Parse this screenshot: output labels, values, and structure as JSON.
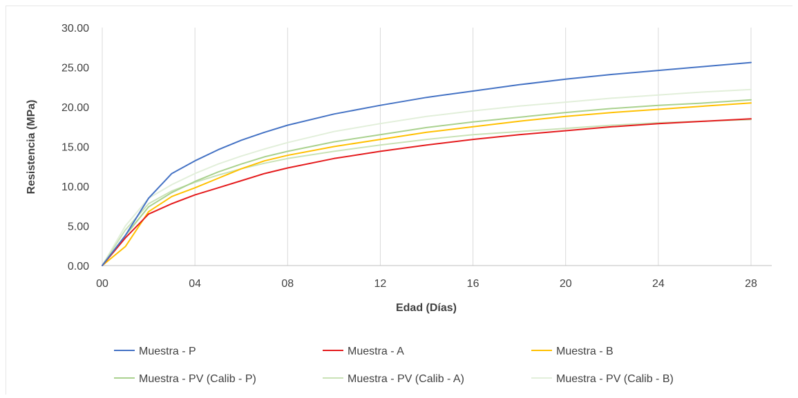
{
  "chart_data": {
    "type": "line",
    "xlabel": "Edad (Días)",
    "ylabel": "Resistencia (MPa)",
    "xlim": [
      0,
      28
    ],
    "ylim": [
      0,
      30
    ],
    "x_ticks": [
      "00",
      "04",
      "08",
      "12",
      "16",
      "20",
      "24",
      "28"
    ],
    "y_ticks": [
      "0.00",
      "5.00",
      "10.00",
      "15.00",
      "20.00",
      "25.00",
      "30.00"
    ],
    "grid": "vertical",
    "legend_position": "bottom",
    "series": [
      {
        "name": "Muestra - P",
        "color": "#4472C4",
        "x": [
          0,
          1,
          2,
          3,
          4,
          5,
          6,
          7,
          8,
          10,
          12,
          14,
          16,
          18,
          20,
          22,
          24,
          26,
          28
        ],
        "y": [
          0,
          3.8,
          8.5,
          11.6,
          13.2,
          14.6,
          15.8,
          16.8,
          17.7,
          19.1,
          20.2,
          21.2,
          22.0,
          22.8,
          23.5,
          24.1,
          24.6,
          25.1,
          25.6
        ]
      },
      {
        "name": "Muestra - A",
        "color": "#E41A1C",
        "x": [
          0,
          1,
          2,
          3,
          4,
          5,
          6,
          7,
          8,
          10,
          12,
          14,
          16,
          18,
          20,
          22,
          24,
          26,
          28
        ],
        "y": [
          0,
          3.5,
          6.5,
          7.8,
          8.9,
          9.8,
          10.7,
          11.6,
          12.3,
          13.5,
          14.4,
          15.2,
          15.9,
          16.5,
          17.0,
          17.5,
          17.9,
          18.2,
          18.5
        ]
      },
      {
        "name": "Muestra - B",
        "color": "#FFC000",
        "x": [
          0,
          1,
          2,
          3,
          4,
          5,
          6,
          7,
          8,
          10,
          12,
          14,
          16,
          18,
          20,
          22,
          24,
          26,
          28
        ],
        "y": [
          0,
          2.4,
          6.8,
          8.7,
          9.8,
          11.0,
          12.2,
          13.2,
          13.9,
          15.0,
          15.9,
          16.8,
          17.5,
          18.2,
          18.8,
          19.3,
          19.7,
          20.1,
          20.5
        ]
      },
      {
        "name": "Muestra - PV (Calib - P)",
        "color": "#A9D18E",
        "x": [
          0,
          1,
          2,
          3,
          4,
          5,
          6,
          7,
          8,
          10,
          12,
          14,
          16,
          18,
          20,
          22,
          24,
          26,
          28
        ],
        "y": [
          0,
          3.8,
          7.4,
          9.2,
          10.6,
          11.8,
          12.8,
          13.7,
          14.4,
          15.6,
          16.5,
          17.4,
          18.1,
          18.7,
          19.3,
          19.8,
          20.2,
          20.5,
          20.9
        ]
      },
      {
        "name": "Muestra - PV (Calib - A)",
        "color": "#C9E2B6",
        "x": [
          0,
          1,
          2,
          3,
          4,
          5,
          6,
          7,
          8,
          10,
          12,
          14,
          16,
          18,
          20,
          22,
          24,
          26,
          28
        ],
        "y": [
          0,
          4.5,
          7.8,
          9.4,
          10.5,
          11.4,
          12.2,
          12.9,
          13.5,
          14.4,
          15.2,
          15.9,
          16.5,
          16.9,
          17.3,
          17.7,
          18.0,
          18.2,
          18.4
        ]
      },
      {
        "name": "Muestra - PV (Calib - B)",
        "color": "#E2EFDA",
        "x": [
          0,
          1,
          2,
          3,
          4,
          5,
          6,
          7,
          8,
          10,
          12,
          14,
          16,
          18,
          20,
          22,
          24,
          26,
          28
        ],
        "y": [
          0,
          5.0,
          8.5,
          10.2,
          11.6,
          12.8,
          13.8,
          14.7,
          15.5,
          16.9,
          17.9,
          18.8,
          19.5,
          20.1,
          20.6,
          21.1,
          21.5,
          21.9,
          22.2
        ]
      }
    ]
  }
}
